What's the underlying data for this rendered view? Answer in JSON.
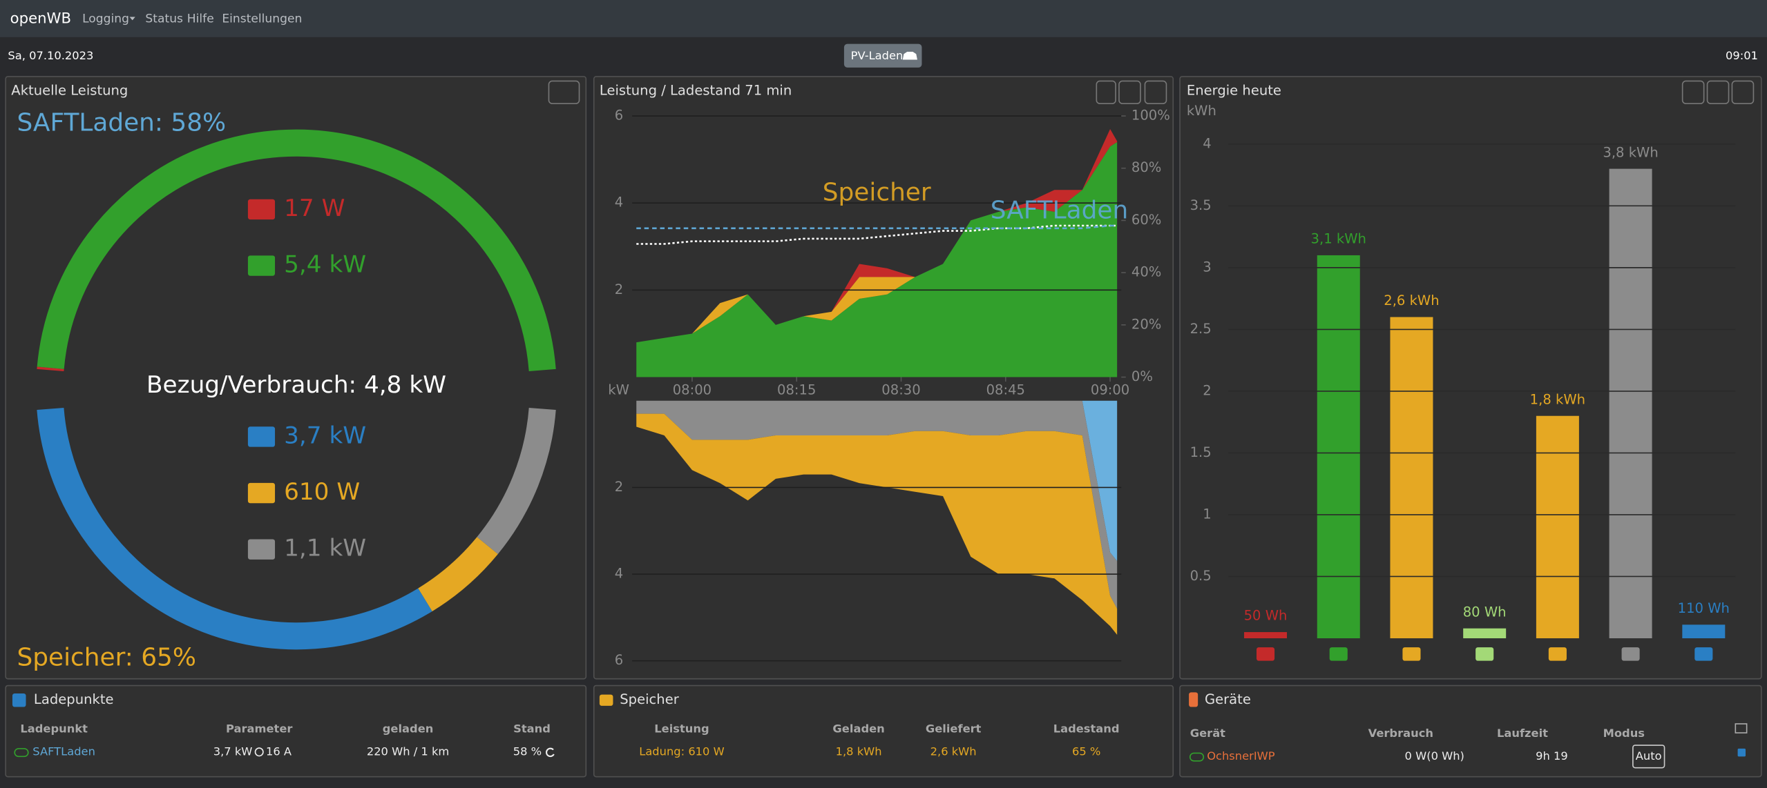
{
  "navbar": {
    "brand": "openWB",
    "menu": [
      "Logging",
      "Status",
      "Hilfe",
      "Einstellungen"
    ]
  },
  "status_bar": {
    "date": "Sa, 07.10.2023",
    "mode_button": "PV-Laden",
    "time": "09:01"
  },
  "power_panel": {
    "title": "Aktuelle Leistung",
    "vehicle_soc": "SAFTLaden: 58%",
    "sources": [
      {
        "value": 0.017,
        "label": "17 W",
        "color": "#c42a2a"
      },
      {
        "value": 5.4,
        "label": "5,4 kW",
        "color": "#32a02c"
      }
    ],
    "consumption": "Bezug/Verbrauch: 4,8 kW",
    "consumers": [
      {
        "value": 3.7,
        "label": "3,7 kW",
        "color": "#2a7fc4"
      },
      {
        "value": 0.61,
        "label": "610 W",
        "color": "#e5a823"
      },
      {
        "value": 1.1,
        "label": "1,1 kW",
        "color": "#8c8c8c"
      }
    ],
    "battery_soc": "Speicher: 65%"
  },
  "chart_data": [
    {
      "type": "area",
      "title": "Leistung / Ladestand 71 min",
      "x": [
        472,
        476,
        480,
        484,
        488,
        492,
        496,
        500,
        504,
        508,
        512,
        516,
        520,
        524,
        528,
        532,
        536,
        540,
        541
      ],
      "xlim": [
        471.4,
        541.6
      ],
      "xticks": [
        {
          "value": 480,
          "label": "08:00"
        },
        {
          "value": 495,
          "label": "08:15"
        },
        {
          "value": 510,
          "label": "08:30"
        },
        {
          "value": 525,
          "label": "08:45"
        },
        {
          "value": 540,
          "label": "09:00"
        }
      ],
      "ylim": [
        0,
        6
      ],
      "yticks": [
        2,
        4,
        6
      ],
      "y2lim": [
        0,
        100
      ],
      "y2ticks": [
        {
          "value": 0,
          "label": "0%"
        },
        {
          "value": 20,
          "label": "20%"
        },
        {
          "value": 40,
          "label": "40%"
        },
        {
          "value": 60,
          "label": "60%"
        },
        {
          "value": 80,
          "label": "80%"
        },
        {
          "value": 100,
          "label": "100%"
        }
      ],
      "grid": true,
      "series": [
        {
          "color": "#32a02c",
          "values": [
            0.8,
            0.9,
            1.0,
            1.4,
            1.9,
            1.2,
            1.4,
            1.3,
            1.8,
            1.9,
            2.3,
            2.6,
            3.6,
            3.8,
            3.9,
            3.8,
            4.3,
            5.3,
            5.4
          ]
        },
        {
          "color": "#e5a823",
          "values": [
            0,
            0,
            0,
            0.3,
            0,
            0,
            0,
            0.2,
            0.5,
            0.4,
            0,
            0,
            0,
            0,
            0,
            0,
            0,
            0,
            0
          ]
        },
        {
          "color": "#c42a2a",
          "values": [
            0,
            0,
            0,
            0,
            0,
            0,
            0,
            0,
            0.3,
            0.2,
            0,
            0,
            0,
            0,
            0.1,
            0.5,
            0,
            0.4,
            0.02
          ]
        },
        {
          "color": "#ffffff",
          "axis": "y2",
          "style": "dotted",
          "values": [
            51,
            51,
            52,
            52,
            52,
            52,
            53,
            53,
            53,
            54,
            55,
            56,
            56,
            57,
            57,
            58,
            58,
            58,
            58
          ]
        },
        {
          "color": "#5fa8d6",
          "axis": "y2",
          "style": "dashed",
          "values": [
            57,
            57,
            57,
            57,
            57,
            57,
            57,
            57,
            57,
            57,
            57,
            57,
            57,
            57,
            57,
            57,
            57,
            58,
            58
          ]
        }
      ],
      "annotations": [
        {
          "text": "Speicher",
          "color": "#e5a823"
        },
        {
          "text": "SAFTLaden",
          "color": "#5fa8d6"
        }
      ]
    },
    {
      "type": "area",
      "ylabel": "kW",
      "x": [
        472,
        476,
        480,
        484,
        488,
        492,
        496,
        500,
        504,
        508,
        512,
        516,
        520,
        524,
        528,
        532,
        536,
        540,
        541
      ],
      "xlim": [
        471.4,
        541.6
      ],
      "ylim": [
        0,
        6
      ],
      "yticks": [
        2,
        4,
        6
      ],
      "reversed": true,
      "grid": true,
      "series": [
        {
          "color": "#6ab0de",
          "values": [
            0,
            0,
            0,
            0,
            0,
            0,
            0,
            0,
            0,
            0,
            0,
            0,
            0,
            0,
            0,
            0,
            0,
            3.5,
            3.7
          ]
        },
        {
          "color": "#8c8c8c",
          "values": [
            0.3,
            0.3,
            0.9,
            0.9,
            0.9,
            0.8,
            0.8,
            0.8,
            0.8,
            0.8,
            0.7,
            0.7,
            0.8,
            0.8,
            0.7,
            0.7,
            0.8,
            1.0,
            1.1
          ]
        },
        {
          "color": "#e5a823",
          "values": [
            0.3,
            0.5,
            0.7,
            1.0,
            1.4,
            1.0,
            0.9,
            0.9,
            1.1,
            1.2,
            1.4,
            1.5,
            2.8,
            3.2,
            3.3,
            3.4,
            3.8,
            0.7,
            0.6
          ]
        }
      ]
    },
    {
      "type": "bar",
      "title": "Energie heute",
      "ylabel": "kWh",
      "categories": [
        null,
        null,
        null,
        null,
        null,
        null,
        null
      ],
      "values": [
        0.05,
        3.1,
        2.6,
        0.08,
        1.8,
        3.8,
        0.11
      ],
      "value_labels": [
        "50 Wh",
        "3,1 kWh",
        "2,6 kWh",
        "80 Wh",
        "1,8 kWh",
        "3,8 kWh",
        "110 Wh"
      ],
      "colors": [
        "#c42a2a",
        "#32a02c",
        "#e5a823",
        "#a3d977",
        "#e5a823",
        "#8c8c8c",
        "#2a7fc4"
      ],
      "ylim": [
        0,
        4
      ],
      "yticks": [
        0.5,
        1,
        1.5,
        2,
        2.5,
        3,
        3.5,
        4
      ],
      "grid": true
    }
  ],
  "charge_points": {
    "title": "Ladepunkte",
    "headers": [
      "Ladepunkt",
      "Parameter",
      "geladen",
      "Stand"
    ],
    "rows": [
      [
        "SAFTLaden",
        "3,7 kW",
        "16 A",
        "220 Wh / 1 km",
        "58 %"
      ]
    ]
  },
  "battery": {
    "title": "Speicher",
    "headers": [
      "Leistung",
      "Geladen",
      "Geliefert",
      "Ladestand"
    ],
    "rows": [
      [
        "Ladung: 610 W",
        "1,8 kWh",
        "2,6 kWh",
        "65 %"
      ]
    ]
  },
  "devices": {
    "title": "Geräte",
    "headers": [
      "Gerät",
      "Verbrauch",
      "Laufzeit",
      "Modus"
    ],
    "rows": [
      [
        "OchsnerIWP",
        "0 W(0 Wh)",
        "9h 19",
        "Auto"
      ]
    ]
  }
}
